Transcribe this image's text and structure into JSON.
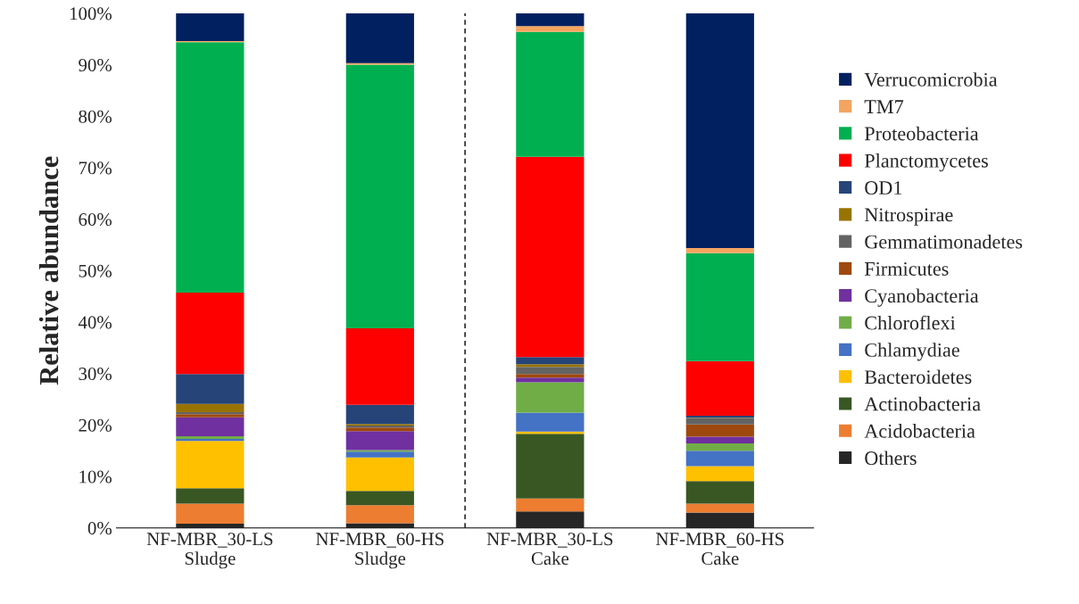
{
  "chart_data": {
    "type": "bar",
    "stacked": true,
    "ylabel": "Relative abundance",
    "categories": [
      "NF-MBR_30-LS\nSludge",
      "NF-MBR_60-HS\nSludge",
      "NF-MBR_30-LS\nCake",
      "NF-MBR_60-HS\nCake"
    ],
    "ylim": [
      0,
      100
    ],
    "yticks": [
      {
        "value": 0,
        "label": "0%"
      },
      {
        "value": 10,
        "label": "10%"
      },
      {
        "value": 20,
        "label": "20%"
      },
      {
        "value": 30,
        "label": "30%"
      },
      {
        "value": 40,
        "label": "40%"
      },
      {
        "value": 50,
        "label": "50%"
      },
      {
        "value": 60,
        "label": "60%"
      },
      {
        "value": 70,
        "label": "70%"
      },
      {
        "value": 80,
        "label": "80%"
      },
      {
        "value": 90,
        "label": "90%"
      },
      {
        "value": 100,
        "label": "100%"
      }
    ],
    "grid": false,
    "legend": "right",
    "series": [
      {
        "name": "Others",
        "color": "#262626",
        "values": [
          0.8,
          0.9,
          3.2,
          3.0
        ]
      },
      {
        "name": "Acidobacteria",
        "color": "#ed7d31",
        "values": [
          3.9,
          3.5,
          2.5,
          1.7
        ]
      },
      {
        "name": "Actinobacteria",
        "color": "#385723",
        "values": [
          3.0,
          2.8,
          12.6,
          4.4
        ]
      },
      {
        "name": "Bacteroidetes",
        "color": "#ffc000",
        "values": [
          9.2,
          6.5,
          0.4,
          2.9
        ]
      },
      {
        "name": "Chlamydiae",
        "color": "#4472c4",
        "values": [
          0.4,
          1.1,
          3.7,
          3.0
        ]
      },
      {
        "name": "Chloroflexi",
        "color": "#70ad47",
        "values": [
          0.5,
          0.3,
          5.9,
          1.4
        ]
      },
      {
        "name": "Cyanobacteria",
        "color": "#7030a0",
        "values": [
          3.7,
          3.7,
          0.9,
          1.3
        ]
      },
      {
        "name": "Firmicutes",
        "color": "#9e480e",
        "values": [
          0.6,
          0.7,
          0.7,
          2.4
        ]
      },
      {
        "name": "Gemmatimonadetes",
        "color": "#636363",
        "values": [
          0.4,
          0.4,
          1.4,
          1.2
        ]
      },
      {
        "name": "Nitrospirae",
        "color": "#997300",
        "values": [
          1.6,
          0.3,
          0.5,
          0.1
        ]
      },
      {
        "name": "OD1",
        "color": "#264478",
        "values": [
          5.8,
          3.7,
          1.4,
          0.4
        ]
      },
      {
        "name": "Planctomycetes",
        "color": "#ff0000",
        "values": [
          15.8,
          14.9,
          38.9,
          10.6
        ]
      },
      {
        "name": "Proteobacteria",
        "color": "#00b050",
        "values": [
          48.7,
          51.2,
          24.3,
          21.0
        ]
      },
      {
        "name": "TM7",
        "color": "#f4a460",
        "values": [
          0.2,
          0.3,
          1.1,
          1.0
        ]
      },
      {
        "name": "Verrucomicrobia",
        "color": "#002060",
        "values": [
          5.4,
          9.7,
          2.5,
          45.6
        ]
      }
    ]
  }
}
